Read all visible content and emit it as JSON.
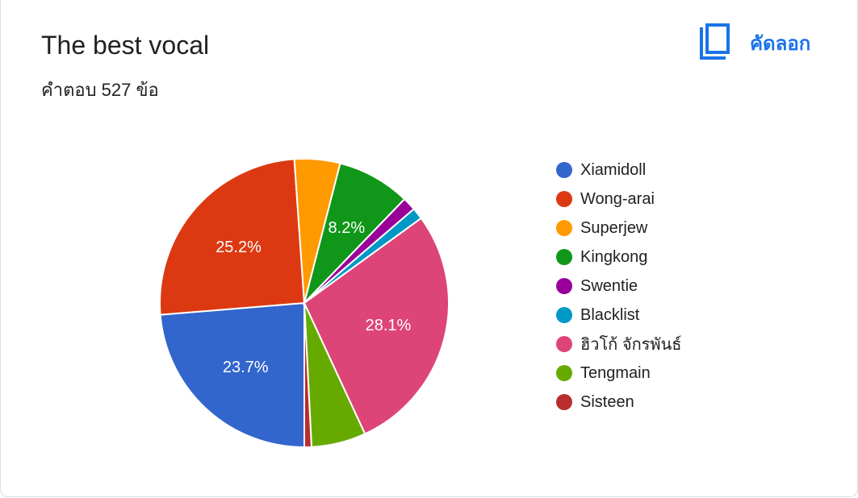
{
  "header": {
    "title": "The best vocal",
    "response_count": "คำตอบ 527 ข้อ",
    "copy_label": "คัดลอก",
    "copy_icon": "copy-icon",
    "accent_color": "#1a73e8"
  },
  "chart_data": {
    "type": "pie",
    "title": "The best vocal",
    "legend_position": "right",
    "start_angle_deg": 90,
    "direction": "clockwise",
    "slices": [
      {
        "label": "Xiamidoll",
        "value": 23.7,
        "color": "#3366cc",
        "data_label": "23.7%"
      },
      {
        "label": "Wong-arai",
        "value": 25.2,
        "color": "#dc3912",
        "data_label": "25.2%"
      },
      {
        "label": "Superjew",
        "value": 5.1,
        "color": "#ff9900",
        "data_label": ""
      },
      {
        "label": "Kingkong",
        "value": 8.2,
        "color": "#109618",
        "data_label": "8.2%"
      },
      {
        "label": "Swentie",
        "value": 1.5,
        "color": "#990099",
        "data_label": ""
      },
      {
        "label": "Blacklist",
        "value": 1.3,
        "color": "#0099c6",
        "data_label": ""
      },
      {
        "label": "ฮิวโก้ จักรพันธ์",
        "value": 28.1,
        "color": "#dd4477",
        "data_label": "28.1%"
      },
      {
        "label": "Tengmain",
        "value": 6.1,
        "color": "#66aa00",
        "data_label": ""
      },
      {
        "label": "Sisteen",
        "value": 0.8,
        "color": "#b82e2e",
        "data_label": ""
      }
    ]
  }
}
